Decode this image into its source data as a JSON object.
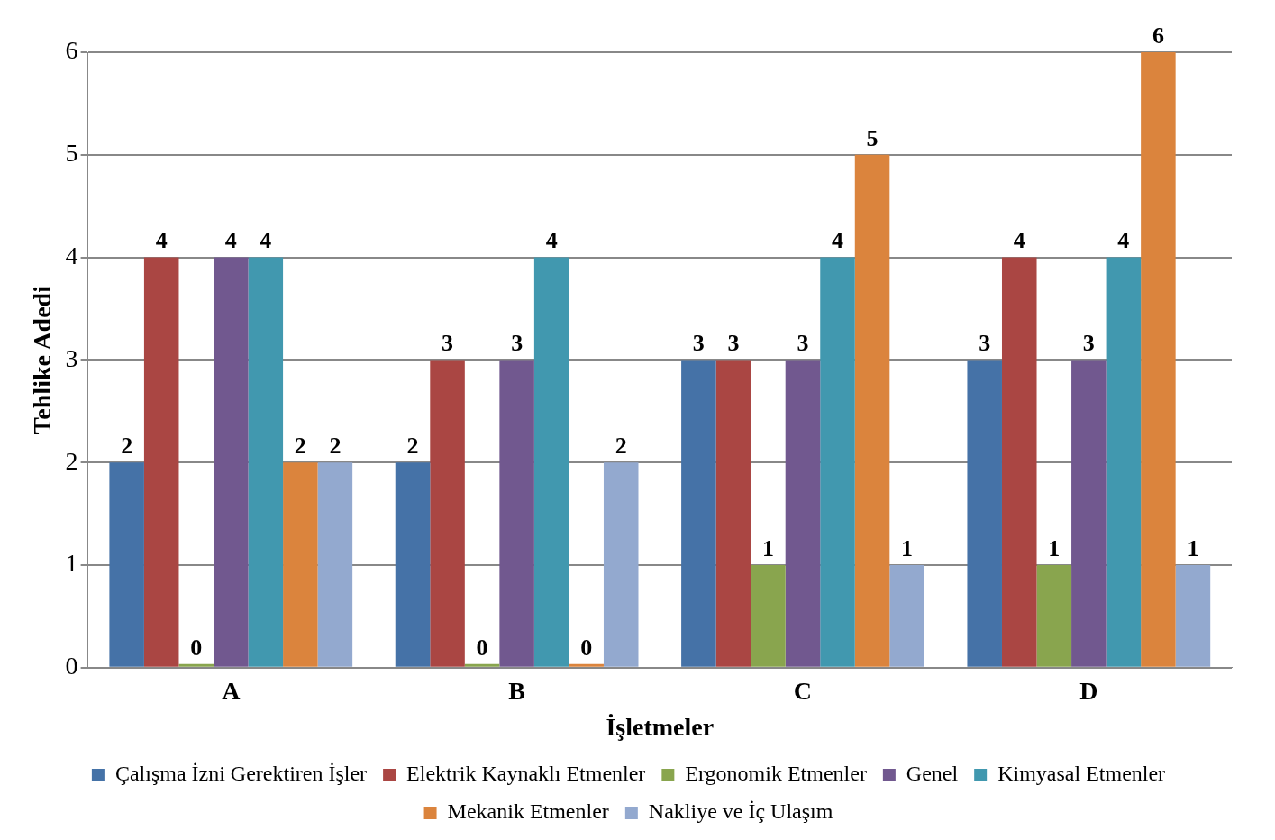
{
  "chart_data": {
    "type": "bar",
    "xlabel": "İşletmeler",
    "ylabel": "Tehlike Adedi",
    "categories": [
      "A",
      "B",
      "C",
      "D"
    ],
    "series": [
      {
        "name": "Çalışma İzni Gerektiren İşler",
        "color": "#4572a7",
        "values": [
          2,
          2,
          3,
          3
        ]
      },
      {
        "name": "Elektrik Kaynaklı Etmenler",
        "color": "#aa4643",
        "values": [
          4,
          3,
          3,
          4
        ]
      },
      {
        "name": "Ergonomik Etmenler",
        "color": "#89a54e",
        "values": [
          0,
          0,
          1,
          1
        ]
      },
      {
        "name": "Genel",
        "color": "#71588f",
        "values": [
          4,
          3,
          3,
          3
        ]
      },
      {
        "name": "Kimyasal Etmenler",
        "color": "#4198af",
        "values": [
          4,
          4,
          4,
          4
        ]
      },
      {
        "name": "Mekanik Etmenler",
        "color": "#db843d",
        "values": [
          2,
          0,
          5,
          6
        ]
      },
      {
        "name": "Nakliye ve İç Ulaşım",
        "color": "#93a9cf",
        "values": [
          2,
          2,
          1,
          1
        ]
      }
    ],
    "ylim": [
      0,
      6
    ],
    "yticks": [
      0,
      1,
      2,
      3,
      4,
      5,
      6
    ],
    "grid": "y",
    "legend": "bottom",
    "data_labels": true
  }
}
